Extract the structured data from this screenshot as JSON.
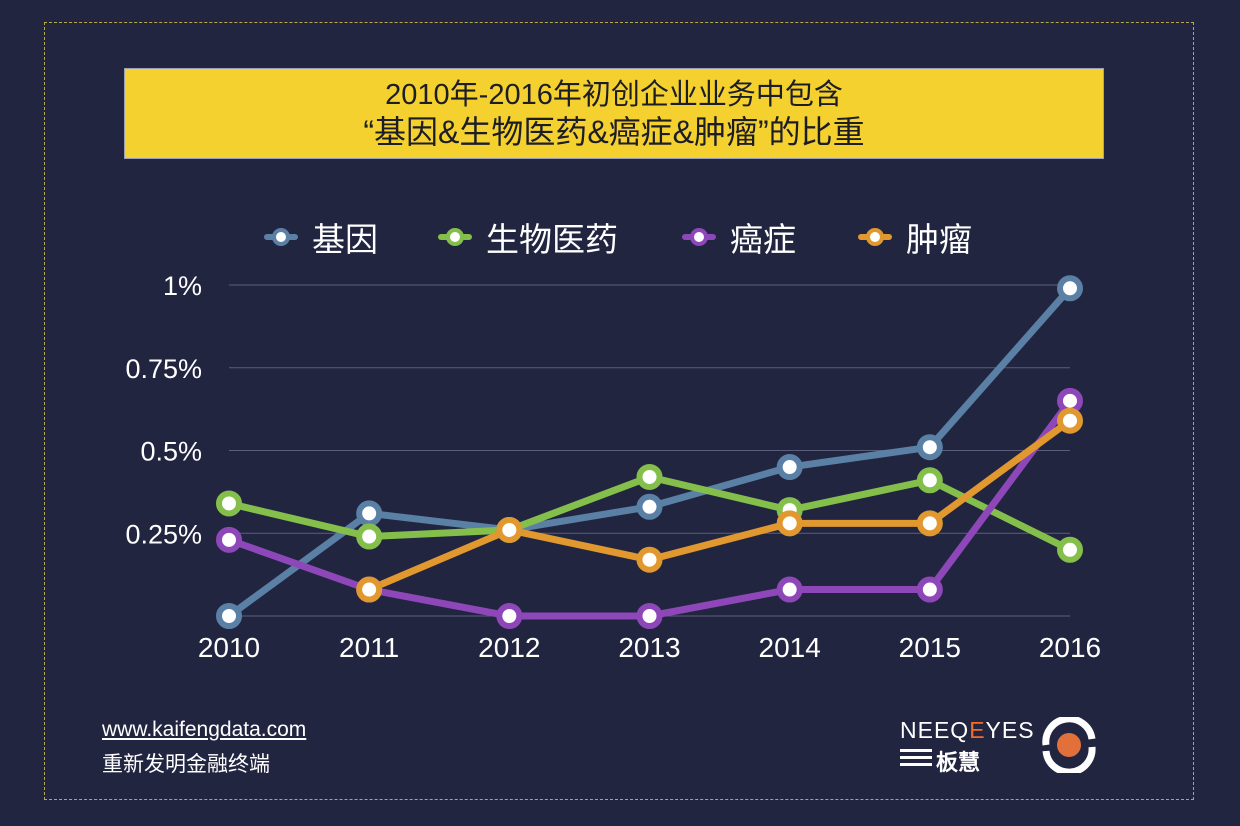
{
  "title": {
    "line1": "2010年-2016年初创企业业务中包含",
    "line2": "“基因&生物医药&癌症&肿瘤”的比重"
  },
  "footer": {
    "url": "www.kaifengdata.com",
    "tagline": "重新发明金融终端"
  },
  "brand": {
    "word_start": "NEEQ",
    "word_accent": "E",
    "word_end": "YES",
    "sub": "板慧"
  },
  "colors": {
    "background": "#222540",
    "title_bg": "#f4d12e",
    "grid": "#5a5e7a",
    "text": "#ffffff"
  },
  "chart_data": {
    "type": "line",
    "title": "2010年-2016年初创企业业务中包含“基因&生物医药&癌症&肿瘤”的比重",
    "xlabel": "",
    "ylabel": "",
    "ylim": [
      0,
      1
    ],
    "grid": true,
    "legend_position": "top",
    "x": [
      "2010",
      "2011",
      "2012",
      "2013",
      "2014",
      "2015",
      "2016"
    ],
    "y_ticks": [
      0.25,
      0.5,
      0.75,
      1
    ],
    "y_tick_labels": [
      "0.25%",
      "0.5%",
      "0.75%",
      "1%"
    ],
    "series": [
      {
        "name": "基因",
        "color": "#5b80a5",
        "values": [
          0.0,
          0.31,
          0.26,
          0.33,
          0.45,
          0.51,
          0.99
        ]
      },
      {
        "name": "生物医药",
        "color": "#85bf4b",
        "values": [
          0.34,
          0.24,
          0.26,
          0.42,
          0.32,
          0.41,
          0.2
        ]
      },
      {
        "name": "癌症",
        "color": "#8e47b8",
        "values": [
          0.23,
          0.08,
          0.0,
          0.0,
          0.08,
          0.08,
          0.65
        ]
      },
      {
        "name": "肿瘤",
        "color": "#e0982f",
        "values": [
          null,
          0.08,
          0.26,
          0.17,
          0.28,
          0.28,
          0.59
        ]
      }
    ]
  }
}
